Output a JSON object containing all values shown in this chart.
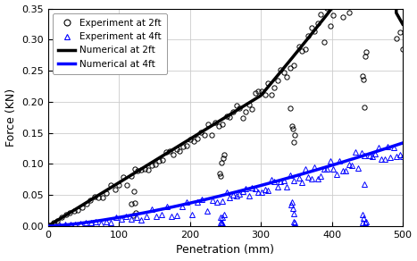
{
  "title": "",
  "xlabel": "Penetration (mm)",
  "ylabel": "Force (KN)",
  "xlim": [
    0,
    500
  ],
  "ylim": [
    0,
    0.35
  ],
  "yticks": [
    0,
    0.05,
    0.1,
    0.15,
    0.2,
    0.25,
    0.3,
    0.35
  ],
  "xticks": [
    0,
    100,
    200,
    300,
    400,
    500
  ],
  "figsize": [
    4.67,
    2.92
  ],
  "dpi": 100,
  "background_color": "#ffffff",
  "grid_color": "#cccccc",
  "num_line_2ft_color": "#000000",
  "num_line_4ft_color": "#0000ff",
  "exp_2ft_color": "#000000",
  "exp_4ft_color": "#0000ff",
  "legend_entries": [
    "Experiment at 2ft",
    "Experiment at 4ft",
    "Numerical at 2ft",
    "Numerical at 4ft"
  ],
  "legend_fontsize": 7.5,
  "axis_fontsize": 8,
  "label_fontsize": 9
}
